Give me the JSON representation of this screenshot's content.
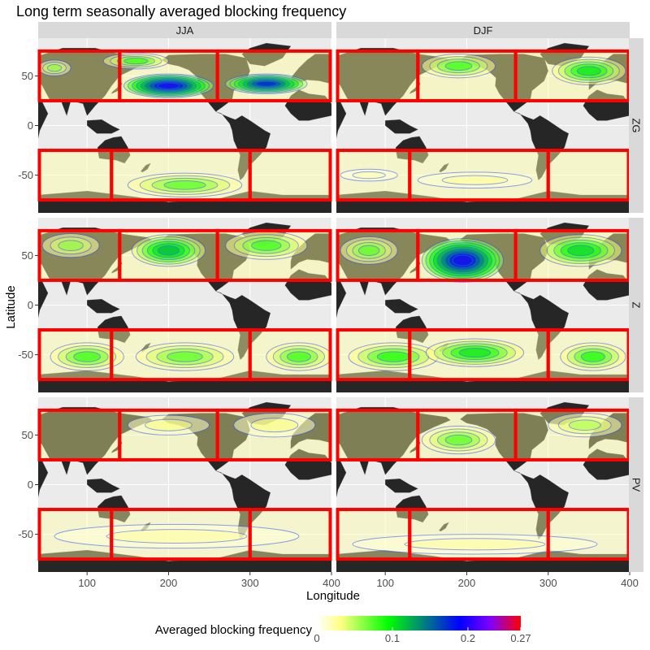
{
  "chart_data": {
    "type": "heatmap",
    "title": "Long term seasonally averaged blocking frequency",
    "xlabel": "Longitude",
    "ylabel": "Latitude",
    "columns": [
      "JJA",
      "DJF"
    ],
    "rows": [
      "ZG",
      "Z",
      "PV"
    ],
    "x_ticks": [
      100,
      200,
      300,
      400
    ],
    "y_ticks": [
      50,
      0,
      -50
    ],
    "xlim": [
      40,
      400
    ],
    "ylim": [
      -88,
      88
    ],
    "legend": {
      "title": "Averaged blocking frequency",
      "position": "bottom",
      "ticks": [
        "0",
        "0.1",
        "0.2",
        "0.27"
      ],
      "range": [
        0,
        0.27
      ],
      "colors": [
        "#ffffff",
        "#ffff00",
        "#00ff00",
        "#0000ff",
        "#8000ff",
        "#ff0000"
      ]
    },
    "region_boxes": {
      "color": "#ff0000",
      "north_lat": [
        25,
        75
      ],
      "south_lat": [
        -75,
        -25
      ],
      "north_lon_bounds": [
        40,
        140,
        260,
        400
      ],
      "south_lon_bounds": [
        40,
        130,
        300,
        400
      ]
    },
    "blobs": [
      {
        "col": 0,
        "row": 0,
        "lon": 200,
        "lat": 40,
        "rx": 55,
        "ry": 12,
        "level": 0.22
      },
      {
        "col": 0,
        "row": 0,
        "lon": 320,
        "lat": 42,
        "rx": 50,
        "ry": 10,
        "level": 0.2
      },
      {
        "col": 0,
        "row": 0,
        "lon": 160,
        "lat": 65,
        "rx": 40,
        "ry": 8,
        "level": 0.1
      },
      {
        "col": 0,
        "row": 0,
        "lon": 60,
        "lat": 58,
        "rx": 20,
        "ry": 8,
        "level": 0.08
      },
      {
        "col": 0,
        "row": 0,
        "lon": 220,
        "lat": -60,
        "rx": 70,
        "ry": 12,
        "level": 0.09
      },
      {
        "col": 1,
        "row": 0,
        "lon": 190,
        "lat": 60,
        "rx": 45,
        "ry": 12,
        "level": 0.1
      },
      {
        "col": 1,
        "row": 0,
        "lon": 350,
        "lat": 55,
        "rx": 45,
        "ry": 14,
        "level": 0.12
      },
      {
        "col": 1,
        "row": 0,
        "lon": 210,
        "lat": -55,
        "rx": 70,
        "ry": 8,
        "level": 0.04
      },
      {
        "col": 1,
        "row": 0,
        "lon": 80,
        "lat": -50,
        "rx": 35,
        "ry": 6,
        "level": 0.03
      },
      {
        "col": 0,
        "row": 1,
        "lon": 200,
        "lat": 55,
        "rx": 45,
        "ry": 16,
        "level": 0.14
      },
      {
        "col": 0,
        "row": 1,
        "lon": 320,
        "lat": 60,
        "rx": 50,
        "ry": 14,
        "level": 0.1
      },
      {
        "col": 0,
        "row": 1,
        "lon": 80,
        "lat": 60,
        "rx": 35,
        "ry": 12,
        "level": 0.08
      },
      {
        "col": 0,
        "row": 1,
        "lon": 100,
        "lat": -52,
        "rx": 45,
        "ry": 14,
        "level": 0.1
      },
      {
        "col": 0,
        "row": 1,
        "lon": 220,
        "lat": -52,
        "rx": 60,
        "ry": 14,
        "level": 0.09
      },
      {
        "col": 0,
        "row": 1,
        "lon": 360,
        "lat": -52,
        "rx": 40,
        "ry": 14,
        "level": 0.1
      },
      {
        "col": 1,
        "row": 1,
        "lon": 195,
        "lat": 45,
        "rx": 50,
        "ry": 22,
        "level": 0.22
      },
      {
        "col": 1,
        "row": 1,
        "lon": 340,
        "lat": 55,
        "rx": 50,
        "ry": 16,
        "level": 0.13
      },
      {
        "col": 1,
        "row": 1,
        "lon": 80,
        "lat": 55,
        "rx": 35,
        "ry": 14,
        "level": 0.09
      },
      {
        "col": 1,
        "row": 1,
        "lon": 110,
        "lat": -52,
        "rx": 55,
        "ry": 14,
        "level": 0.11
      },
      {
        "col": 1,
        "row": 1,
        "lon": 210,
        "lat": -48,
        "rx": 60,
        "ry": 14,
        "level": 0.12
      },
      {
        "col": 1,
        "row": 1,
        "lon": 355,
        "lat": -52,
        "rx": 40,
        "ry": 14,
        "level": 0.11
      },
      {
        "col": 0,
        "row": 2,
        "lon": 200,
        "lat": 60,
        "rx": 50,
        "ry": 10,
        "level": 0.05
      },
      {
        "col": 0,
        "row": 2,
        "lon": 330,
        "lat": 60,
        "rx": 50,
        "ry": 12,
        "level": 0.05
      },
      {
        "col": 0,
        "row": 2,
        "lon": 210,
        "lat": -52,
        "rx": 150,
        "ry": 12,
        "level": 0.035
      },
      {
        "col": 1,
        "row": 2,
        "lon": 190,
        "lat": 45,
        "rx": 45,
        "ry": 14,
        "level": 0.09
      },
      {
        "col": 1,
        "row": 2,
        "lon": 345,
        "lat": 60,
        "rx": 45,
        "ry": 12,
        "level": 0.07
      },
      {
        "col": 1,
        "row": 2,
        "lon": 210,
        "lat": -60,
        "rx": 150,
        "ry": 10,
        "level": 0.035
      }
    ]
  }
}
